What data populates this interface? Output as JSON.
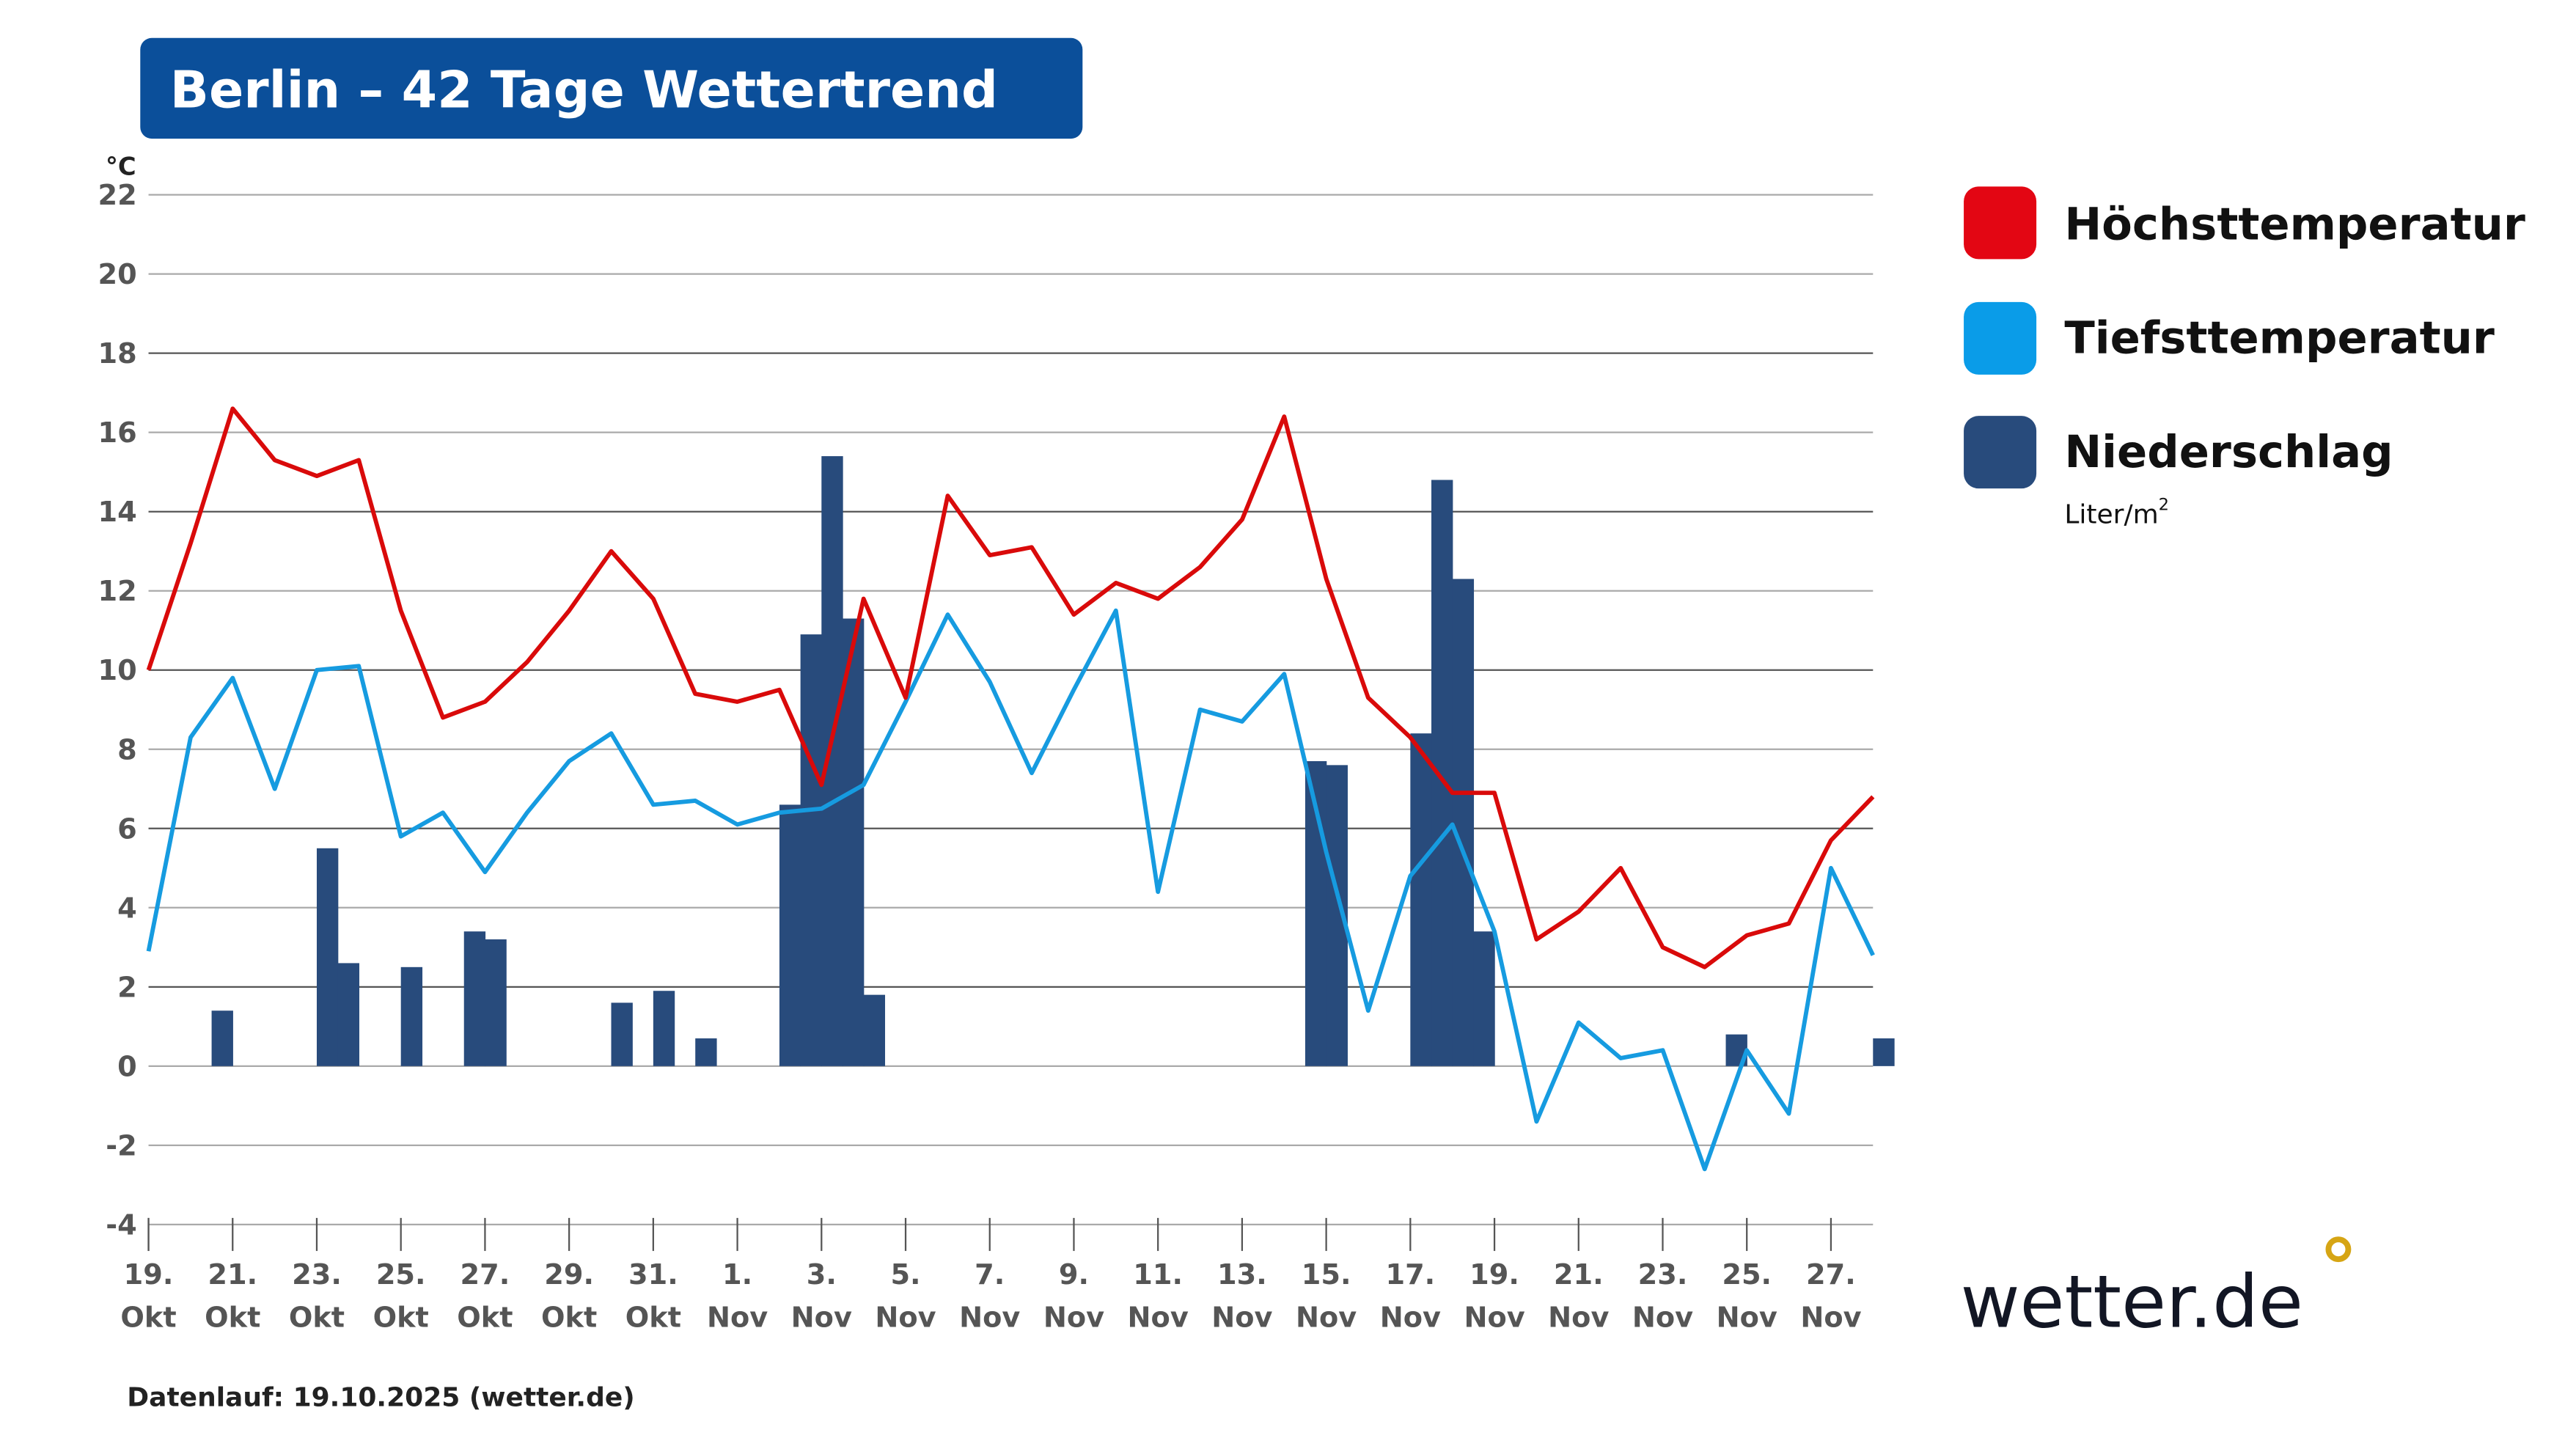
{
  "header": {
    "title": "Berlin – 42 Tage Wettertrend",
    "background": "#0b4f9a"
  },
  "footer": {
    "data_run": "Datenlauf: 19.10.2025 (wetter.de)"
  },
  "logo": {
    "text": "wetter.de",
    "dot_color": "#d6a514"
  },
  "legend": {
    "items": [
      {
        "label": "Höchsttemperatur",
        "color": "#e30613"
      },
      {
        "label": "Tiefsttemperatur",
        "color": "#0a9ce8"
      },
      {
        "label": "Niederschlag",
        "color": "#284b7c",
        "unit": "Liter/m",
        "unit_sup": "2"
      }
    ]
  },
  "chart_data": {
    "type": "line+bar",
    "title": "Berlin – 42 Tage Wettertrend",
    "ylabel": "°C",
    "ylim": [
      -4,
      22
    ],
    "yticks": [
      -4,
      -2,
      0,
      2,
      4,
      6,
      8,
      10,
      12,
      14,
      16,
      18,
      20,
      22
    ],
    "grid": true,
    "legend_position": "right",
    "x_tick_labels": [
      [
        "19.",
        "Okt"
      ],
      [
        "21.",
        "Okt"
      ],
      [
        "23.",
        "Okt"
      ],
      [
        "25.",
        "Okt"
      ],
      [
        "27.",
        "Okt"
      ],
      [
        "29.",
        "Okt"
      ],
      [
        "31.",
        "Okt"
      ],
      [
        "1.",
        "Nov"
      ],
      [
        "3.",
        "Nov"
      ],
      [
        "5.",
        "Nov"
      ],
      [
        "7.",
        "Nov"
      ],
      [
        "9.",
        "Nov"
      ],
      [
        "11.",
        "Nov"
      ],
      [
        "13.",
        "Nov"
      ],
      [
        "15.",
        "Nov"
      ],
      [
        "17.",
        "Nov"
      ],
      [
        "19.",
        "Nov"
      ],
      [
        "21.",
        "Nov"
      ],
      [
        "23.",
        "Nov"
      ],
      [
        "25.",
        "Nov"
      ],
      [
        "27.",
        "Nov"
      ]
    ],
    "series": [
      {
        "name": "Höchsttemperatur",
        "color": "#d90a0a",
        "values": [
          10.0,
          13.2,
          16.6,
          15.3,
          14.9,
          15.3,
          11.5,
          8.8,
          9.2,
          10.2,
          11.5,
          13.0,
          11.8,
          9.4,
          9.2,
          9.5,
          7.1,
          11.8,
          9.3,
          14.4,
          12.9,
          13.1,
          11.4,
          12.2,
          11.8,
          12.6,
          13.8,
          16.4,
          12.3,
          9.3,
          8.3,
          6.9,
          6.9,
          3.2,
          3.9,
          5.0,
          3.0,
          2.5,
          3.3,
          3.6,
          5.7,
          6.8
        ]
      },
      {
        "name": "Tiefsttemperatur",
        "color": "#169be0",
        "values": [
          2.9,
          8.3,
          9.8,
          7.0,
          10.0,
          10.1,
          5.8,
          6.4,
          4.9,
          6.4,
          7.7,
          8.4,
          6.6,
          6.7,
          6.1,
          6.4,
          6.5,
          7.1,
          9.2,
          11.4,
          9.7,
          7.4,
          9.5,
          11.5,
          4.4,
          9.0,
          8.7,
          9.9,
          5.4,
          1.4,
          4.8,
          6.1,
          3.4,
          -1.4,
          1.1,
          0.2,
          0.4,
          -2.6,
          0.4,
          -1.2,
          5.0,
          2.8
        ]
      },
      {
        "name": "Niederschlag",
        "unit": "Liter/m²",
        "color": "#284b7c",
        "interval": "12h",
        "values": [
          0,
          0,
          0,
          1.4,
          0,
          0,
          0,
          0,
          5.5,
          2.6,
          0,
          0,
          2.5,
          0,
          0,
          3.4,
          3.2,
          0,
          0,
          0,
          0,
          0,
          1.6,
          0,
          1.9,
          0,
          0.7,
          0,
          0,
          0,
          6.6,
          10.9,
          15.4,
          11.3,
          1.8,
          0,
          0,
          0,
          0,
          0,
          0,
          0,
          0,
          0,
          0,
          0,
          0,
          0,
          0,
          0,
          0,
          0,
          0,
          0,
          0,
          7.7,
          7.6,
          0,
          0,
          0,
          8.4,
          14.8,
          12.3,
          3.4,
          0,
          0,
          0,
          0,
          0,
          0,
          0,
          0,
          0,
          0,
          0,
          0.8,
          0,
          0,
          0,
          0,
          0,
          0,
          0.7,
          0
        ]
      }
    ]
  }
}
